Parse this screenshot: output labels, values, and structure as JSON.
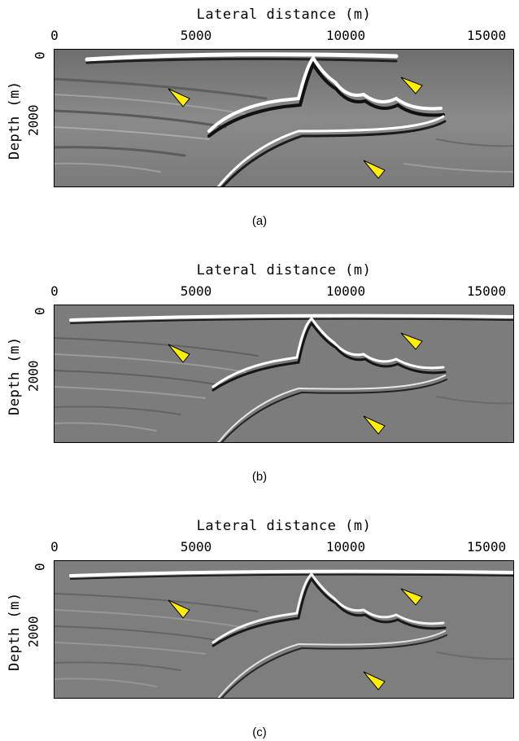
{
  "panels": [
    {
      "x_title": "Lateral distance (m)",
      "y_title": "Depth (m)",
      "x_ticks": [
        "0",
        "5000",
        "10000",
        "15000"
      ],
      "y_ticks": [
        "0",
        "2000"
      ],
      "caption": "(a)"
    },
    {
      "x_title": "Lateral distance (m)",
      "y_title": "Depth (m)",
      "x_ticks": [
        "0",
        "5000",
        "10000",
        "15000"
      ],
      "y_ticks": [
        "0",
        "2000"
      ],
      "caption": "(b)"
    },
    {
      "x_title": "Lateral distance (m)",
      "y_title": "Depth (m)",
      "x_ticks": [
        "0",
        "5000",
        "10000",
        "15000"
      ],
      "y_ticks": [
        "0",
        "2000"
      ],
      "caption": "(c)"
    }
  ],
  "marker_color": "#ffee00",
  "marker_icon": "yellow-triangle-arrow-icon"
}
